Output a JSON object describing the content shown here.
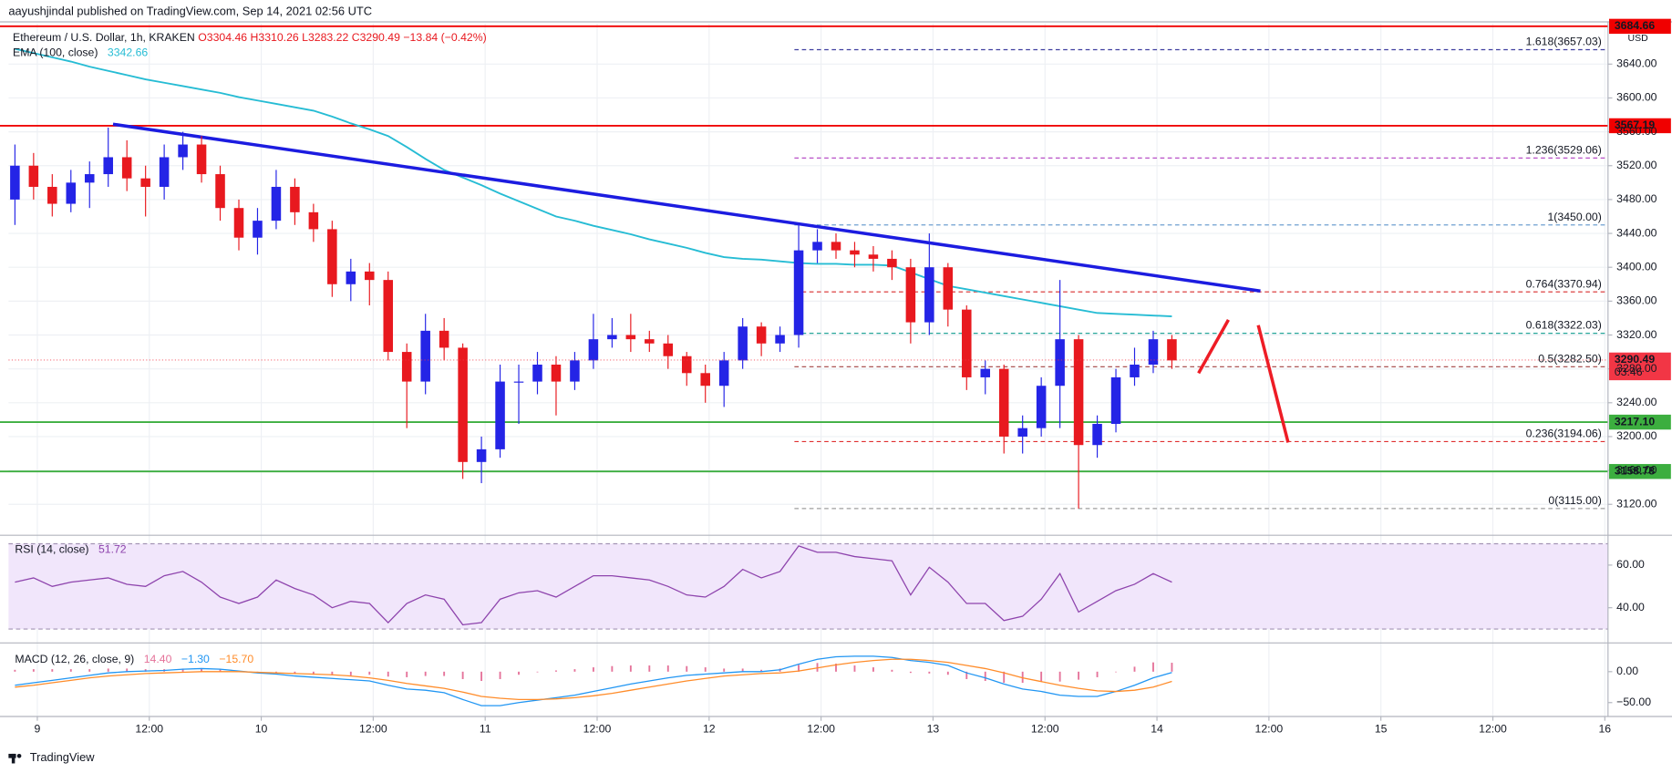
{
  "chart_data": {
    "type": "candlestick",
    "publisher": "aayushjindal published on TradingView.com, Sep 14, 2021 02:56 UTC",
    "title": "Ethereum / U.S. Dollar, 1h, KRAKEN",
    "ohlc_legend": [
      "O3304.46",
      "H3310.26",
      "L3283.22",
      "C3290.49",
      "−13.84 (−0.42%)"
    ],
    "currency": "USD",
    "footer": "TradingView",
    "categories": [
      "9",
      "12:00",
      "10",
      "12:00",
      "11",
      "12:00",
      "12",
      "12:00",
      "13",
      "12:00",
      "14",
      "12:00",
      "15",
      "12:00",
      "16"
    ],
    "ylim": [
      3086,
      3688
    ],
    "yticks": [
      {
        "value": 3120,
        "label": "3120.00"
      },
      {
        "value": 3160,
        "label": "3160.00"
      },
      {
        "value": 3200,
        "label": "3200.00"
      },
      {
        "value": 3240,
        "label": "3240.00"
      },
      {
        "value": 3280,
        "label": "3280.00"
      },
      {
        "value": 3320,
        "label": "3320.00"
      },
      {
        "value": 3360,
        "label": "3360.00"
      },
      {
        "value": 3400,
        "label": "3400.00"
      },
      {
        "value": 3440,
        "label": "3440.00"
      },
      {
        "value": 3480,
        "label": "3480.00"
      },
      {
        "value": 3520,
        "label": "3520.00"
      },
      {
        "value": 3560,
        "label": "3560.00"
      },
      {
        "value": 3600,
        "label": "3600.00"
      },
      {
        "value": 3640,
        "label": "3640.00"
      }
    ],
    "grid": true,
    "up_color": "#2424e6",
    "down_color": "#e8191f",
    "open": [
      3480,
      3520,
      3495,
      3475,
      3500,
      3510,
      3530,
      3505,
      3495,
      3530,
      3545,
      3510,
      3470,
      3435,
      3455,
      3495,
      3465,
      3445,
      3380,
      3395,
      3385,
      3300,
      3265,
      3325,
      3305,
      3170,
      3185,
      3265,
      3265,
      3285,
      3265,
      3290,
      3315,
      3320,
      3315,
      3310,
      3295,
      3275,
      3260,
      3290,
      3330,
      3310,
      3320,
      3420,
      3430,
      3420,
      3415,
      3410,
      3400,
      3335,
      3400,
      3350,
      3270,
      3280,
      3200,
      3210,
      3260,
      3315,
      3190,
      3215,
      3270,
      3285,
      3315
    ],
    "high": [
      3545,
      3535,
      3510,
      3515,
      3525,
      3565,
      3550,
      3520,
      3545,
      3560,
      3555,
      3520,
      3480,
      3470,
      3515,
      3505,
      3475,
      3455,
      3410,
      3405,
      3395,
      3310,
      3345,
      3340,
      3310,
      3200,
      3285,
      3285,
      3300,
      3295,
      3300,
      3345,
      3340,
      3345,
      3325,
      3320,
      3300,
      3285,
      3300,
      3340,
      3335,
      3330,
      3450,
      3445,
      3440,
      3430,
      3425,
      3420,
      3410,
      3440,
      3405,
      3355,
      3290,
      3285,
      3225,
      3270,
      3385,
      3320,
      3225,
      3280,
      3305,
      3325,
      3320
    ],
    "low": [
      3450,
      3480,
      3460,
      3465,
      3470,
      3495,
      3490,
      3460,
      3480,
      3515,
      3500,
      3455,
      3420,
      3415,
      3445,
      3450,
      3430,
      3365,
      3360,
      3355,
      3290,
      3210,
      3250,
      3290,
      3150,
      3145,
      3175,
      3215,
      3250,
      3225,
      3255,
      3280,
      3305,
      3300,
      3300,
      3280,
      3260,
      3240,
      3235,
      3280,
      3295,
      3300,
      3305,
      3405,
      3410,
      3400,
      3395,
      3385,
      3310,
      3320,
      3330,
      3255,
      3250,
      3180,
      3180,
      3200,
      3210,
      3115,
      3175,
      3205,
      3260,
      3275,
      3280
    ],
    "close": [
      3520,
      3495,
      3475,
      3500,
      3510,
      3530,
      3505,
      3495,
      3530,
      3545,
      3510,
      3470,
      3435,
      3455,
      3495,
      3465,
      3445,
      3380,
      3395,
      3385,
      3300,
      3265,
      3325,
      3305,
      3170,
      3185,
      3265,
      3265,
      3285,
      3265,
      3290,
      3315,
      3320,
      3315,
      3310,
      3295,
      3275,
      3260,
      3290,
      3330,
      3310,
      3320,
      3420,
      3430,
      3420,
      3415,
      3410,
      3400,
      3335,
      3400,
      3350,
      3270,
      3280,
      3200,
      3210,
      3260,
      3315,
      3190,
      3215,
      3270,
      3285,
      3315,
      3290
    ],
    "ema": {
      "name": "EMA (100, close)",
      "value_label": "3342.66",
      "color": "#26bcd4",
      "values": [
        3658,
        3653,
        3648,
        3643,
        3637,
        3632,
        3627,
        3622,
        3618,
        3614,
        3610,
        3606,
        3601,
        3597,
        3593,
        3589,
        3585,
        3578,
        3570,
        3563,
        3555,
        3542,
        3528,
        3515,
        3506,
        3497,
        3487,
        3478,
        3469,
        3460,
        3455,
        3449,
        3444,
        3439,
        3433,
        3428,
        3423,
        3417,
        3412,
        3410,
        3409,
        3407,
        3405,
        3404,
        3404,
        3403,
        3403,
        3402,
        3394,
        3386,
        3378,
        3374,
        3370,
        3366,
        3362,
        3358,
        3354,
        3350,
        3346,
        3345,
        3344,
        3343,
        3342
      ]
    },
    "levels": [
      {
        "value": 3684.66,
        "label": "3684.66",
        "color": "#f00000"
      },
      {
        "value": 3567.19,
        "label": "3567.19",
        "color": "#f00000"
      },
      {
        "value": 3217.1,
        "label": "3217.10",
        "color": "#3cae3f"
      },
      {
        "value": 3158.78,
        "label": "3158.78",
        "color": "#3cae3f"
      }
    ],
    "last_price": {
      "value": 3290.49,
      "label": "3290.49",
      "countdown": "03:46",
      "color": "#f23645"
    },
    "fib": [
      {
        "value": 3657.03,
        "label": "1.618(3657.03)",
        "color": "#3f3f9f"
      },
      {
        "value": 3529.06,
        "label": "1.236(3529.06)",
        "color": "#b03cc0"
      },
      {
        "value": 3450,
        "label": "1(3450.00)",
        "color": "#6fa0d0"
      },
      {
        "value": 3370.94,
        "label": "0.764(3370.94)",
        "color": "#d82c2c"
      },
      {
        "value": 3322.03,
        "label": "0.618(3322.03)",
        "color": "#26a69a"
      },
      {
        "value": 3282.5,
        "label": "0.5(3282.50)",
        "color": "#a04040"
      },
      {
        "value": 3194.06,
        "label": "0.236(3194.06)",
        "color": "#e03030"
      },
      {
        "value": 3115,
        "label": "0(3115.00)",
        "color": "#9e9e9e"
      }
    ],
    "trendline": {
      "values": [
        3569,
        3372
      ],
      "color": "#1c1ce0"
    },
    "rsi": {
      "name": "RSI (14, close)",
      "value_label": "51.72",
      "color": "#8e44ad",
      "ylim": [
        25,
        72.5
      ],
      "yticks": [
        {
          "value": 40,
          "label": "40.00"
        },
        {
          "value": 60,
          "label": "60.00"
        }
      ],
      "band": [
        30,
        70
      ],
      "values": [
        52,
        54,
        50,
        52,
        53,
        54,
        51,
        50,
        55,
        57,
        52,
        45,
        42,
        45,
        53,
        49,
        46,
        40,
        43,
        42,
        33,
        42,
        46,
        44,
        32,
        33,
        44,
        47,
        48,
        45,
        50,
        55,
        55,
        54,
        53,
        50,
        46,
        45,
        50,
        58,
        54,
        57,
        69,
        66,
        66,
        64,
        63,
        62,
        46,
        59,
        52,
        42,
        42,
        34,
        36,
        44,
        56,
        38,
        43,
        48,
        51,
        56,
        52
      ]
    },
    "macd": {
      "name": "MACD (12, 26, close, 9)",
      "ylim": [
        -69,
        43
      ],
      "yticks": [
        {
          "value": 0,
          "label": "0.00"
        },
        {
          "value": -50,
          "label": "−50.00"
        }
      ],
      "histogram": {
        "value_label": "14.40",
        "color": "#e5739a",
        "values": [
          3,
          4,
          4,
          4,
          4,
          5,
          5,
          4,
          4,
          5,
          5,
          4,
          1,
          -1,
          -2,
          -4,
          -5,
          -6,
          -6,
          -5,
          -8,
          -9,
          -7,
          -7,
          -12,
          -15,
          -12,
          -5,
          -1,
          2,
          4,
          7,
          9,
          10,
          10,
          10,
          9,
          7,
          5,
          5,
          3,
          5,
          11,
          14,
          13,
          10,
          7,
          3,
          -2,
          -3,
          -5,
          -12,
          -15,
          -18,
          -18,
          -16,
          -16,
          -13,
          -9,
          0,
          8,
          15,
          14.4
        ]
      },
      "macd": {
        "value_label": "−1.30",
        "color": "#2196f3",
        "values": [
          -22,
          -18,
          -14,
          -10,
          -6,
          -2,
          0,
          1,
          2,
          4,
          5,
          4,
          1,
          -2,
          -4,
          -7,
          -9,
          -11,
          -13,
          -15,
          -22,
          -28,
          -30,
          -34,
          -45,
          -55,
          -55,
          -50,
          -46,
          -42,
          -38,
          -32,
          -26,
          -20,
          -15,
          -10,
          -6,
          -4,
          -2,
          0,
          0,
          3,
          12,
          20,
          24,
          25,
          25,
          23,
          18,
          15,
          10,
          -2,
          -10,
          -20,
          -28,
          -32,
          -38,
          -40,
          -40,
          -32,
          -22,
          -10,
          -1.3
        ]
      },
      "signal": {
        "value_label": "−15.70",
        "color": "#ff8c2a",
        "values": [
          -25,
          -22,
          -18,
          -14,
          -10,
          -7,
          -5,
          -3,
          -2,
          -1,
          0,
          0,
          0,
          -1,
          -2,
          -3,
          -4,
          -5,
          -7,
          -10,
          -14,
          -19,
          -23,
          -27,
          -33,
          -40,
          -43,
          -45,
          -45,
          -44,
          -42,
          -39,
          -35,
          -30,
          -25,
          -20,
          -15,
          -11,
          -7,
          -5,
          -3,
          -2,
          1,
          6,
          11,
          15,
          18,
          20,
          20,
          18,
          15,
          10,
          5,
          -2,
          -10,
          -16,
          -22,
          -27,
          -31,
          -32,
          -30,
          -25,
          -15.7
        ]
      }
    }
  }
}
